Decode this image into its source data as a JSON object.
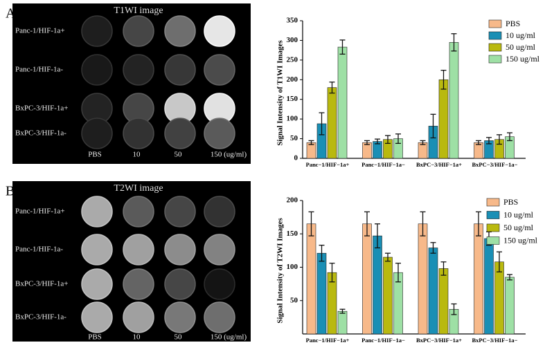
{
  "panels": [
    {
      "label": "A",
      "title": "T1WI image",
      "rows": [
        "Panc-1/HIF-1a+",
        "Panc-1/HIF-1a-",
        "BxPC-3/HIF-1a+",
        "BxPC-3/HIF-1a-"
      ],
      "columns": [
        "PBS",
        "10",
        "50",
        "150 (ug/ml)"
      ]
    },
    {
      "label": "B",
      "title": "T2WI image",
      "rows": [
        "Panc-1/HIF-1a+",
        "Panc-1/HIF-1a-",
        "BxPC-3/HIF-1a+",
        "BxPC-3/HIF-1a-"
      ],
      "columns": [
        "PBS",
        "10",
        "50",
        "150 (ug/ml)"
      ]
    }
  ],
  "chart_data": [
    {
      "type": "bar",
      "ylabel": "Signal Intensity of T1WI Images",
      "categories": [
        "Panc−1/HIF−1a+",
        "Panc−1/HIF−1a−",
        "BxPC−3/HIF−1a+",
        "BxPC−3/HIF−1a−"
      ],
      "series": [
        {
          "name": "PBS",
          "color": "#f7b98a",
          "values": [
            40,
            40,
            40,
            40
          ],
          "errors": [
            5,
            5,
            5,
            5
          ]
        },
        {
          "name": "10 ug/ml",
          "color": "#1a8fb5",
          "values": [
            88,
            43,
            82,
            45
          ],
          "errors": [
            28,
            6,
            30,
            8
          ]
        },
        {
          "name": "50 ug/ml",
          "color": "#b9b90f",
          "values": [
            180,
            48,
            200,
            48
          ],
          "errors": [
            14,
            10,
            24,
            12
          ]
        },
        {
          "name": "150 ug/ml",
          "color": "#9ee0a5",
          "values": [
            283,
            50,
            295,
            55
          ],
          "errors": [
            18,
            12,
            22,
            10
          ]
        }
      ],
      "ylim": [
        0,
        350
      ],
      "yticks": [
        0,
        50,
        100,
        150,
        200,
        250,
        300,
        350
      ],
      "legend": "upper-right"
    },
    {
      "type": "bar",
      "ylabel": "Signal Intensity of T2WI Images",
      "categories": [
        "Panc−1/HIF−1a+",
        "Panc−1/HIF−1a−",
        "BxPC−3/HIF−1a+",
        "BxPC−3/HIF−1a−"
      ],
      "series": [
        {
          "name": "PBS",
          "color": "#f7b98a",
          "values": [
            165,
            165,
            165,
            165
          ],
          "errors": [
            18,
            18,
            18,
            18
          ]
        },
        {
          "name": "10 ug/ml",
          "color": "#1a8fb5",
          "values": [
            121,
            147,
            129,
            143
          ],
          "errors": [
            12,
            18,
            8,
            10
          ]
        },
        {
          "name": "50 ug/ml",
          "color": "#b9b90f",
          "values": [
            92,
            115,
            98,
            108
          ],
          "errors": [
            14,
            6,
            10,
            15
          ]
        },
        {
          "name": "150 ug/ml",
          "color": "#9ee0a5",
          "values": [
            34,
            92,
            37,
            85
          ],
          "errors": [
            3,
            14,
            8,
            4
          ]
        }
      ],
      "ylim": [
        0,
        200
      ],
      "yticks": [
        50,
        100,
        150,
        200
      ],
      "legend": "upper-right"
    }
  ]
}
